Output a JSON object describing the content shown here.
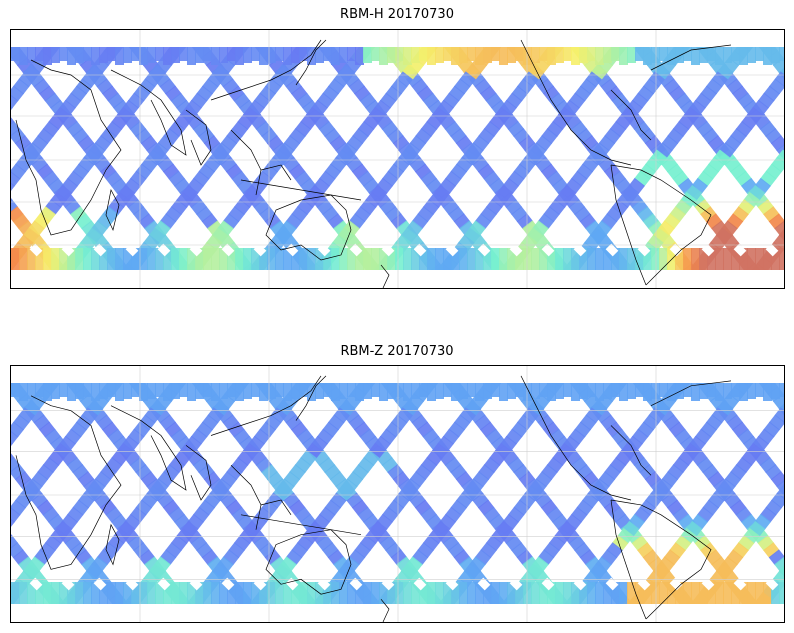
{
  "panels": [
    {
      "title": "RBM-H 20170730",
      "colormap": "jet",
      "hot_zones": [
        {
          "region": "southern ocean west (south of Africa / Indian Ocean)",
          "level": 0.8
        },
        {
          "region": "southern ocean east (south Atlantic, east of South America)",
          "level": 0.95
        },
        {
          "region": "north Pacific high latitude band",
          "level": 0.7
        },
        {
          "region": "southern ocean band (general)",
          "level": 0.5
        }
      ]
    },
    {
      "title": "RBM-Z 20170730",
      "colormap": "jet",
      "hot_zones": [
        {
          "region": "south Atlantic, east of South America",
          "level": 0.7
        },
        {
          "region": "southern ocean band (general)",
          "level": 0.4
        }
      ]
    }
  ],
  "map": {
    "gridlines": true,
    "coastlines": true,
    "track_pattern": "diagonal satellite swaths"
  },
  "colors": {
    "low": "#6a6af2",
    "low_mid": "#5fa8f4",
    "mid": "#76f0d0",
    "mid_high": "#f6f06a",
    "high": "#f58a4a",
    "max": "#c46a6a",
    "coastline": "#000000",
    "grid": "#d0d0d0"
  }
}
